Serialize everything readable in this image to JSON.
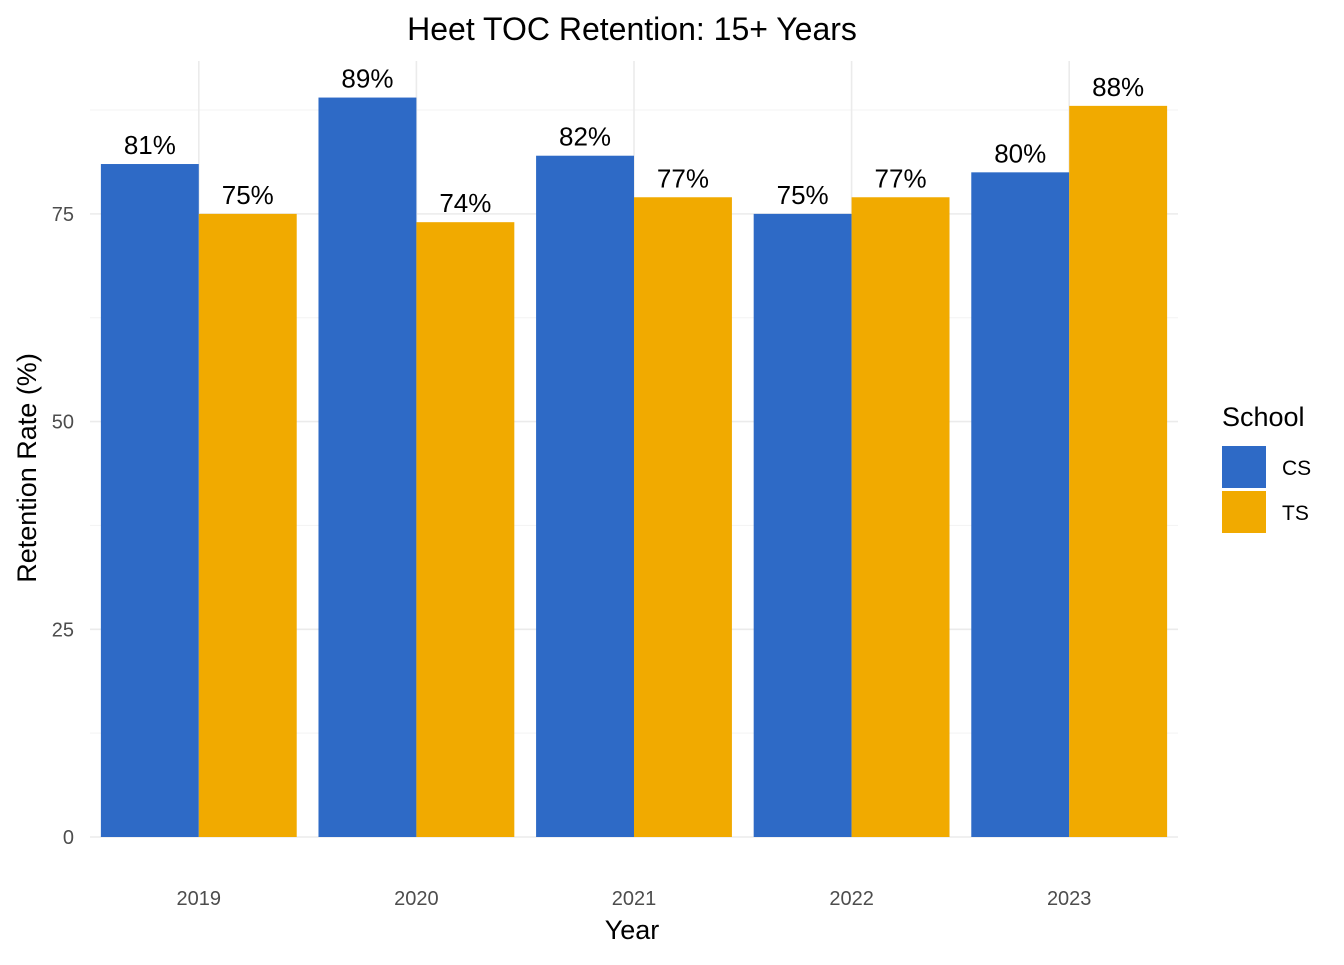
{
  "chart_data": {
    "type": "bar",
    "title": "Heet TOC Retention: 15+ Years",
    "xlabel": "Year",
    "ylabel": "Retention Rate (%)",
    "categories": [
      "2019",
      "2020",
      "2021",
      "2022",
      "2023"
    ],
    "series": [
      {
        "name": "CS",
        "color": "#2e6ac6",
        "values": [
          81,
          89,
          82,
          75,
          80
        ],
        "labels": [
          "81%",
          "89%",
          "82%",
          "75%",
          "80%"
        ]
      },
      {
        "name": "TS",
        "color": "#f1aa00",
        "values": [
          75,
          74,
          77,
          77,
          88
        ],
        "labels": [
          "75%",
          "74%",
          "77%",
          "77%",
          "88%"
        ]
      }
    ],
    "ylim": [
      0,
      93.4
    ],
    "yticks": [
      0,
      25,
      50,
      75
    ],
    "ytick_labels": [
      "0",
      "25",
      "50",
      "75"
    ],
    "grid": true,
    "legend": {
      "title": "School",
      "position": "right"
    }
  }
}
